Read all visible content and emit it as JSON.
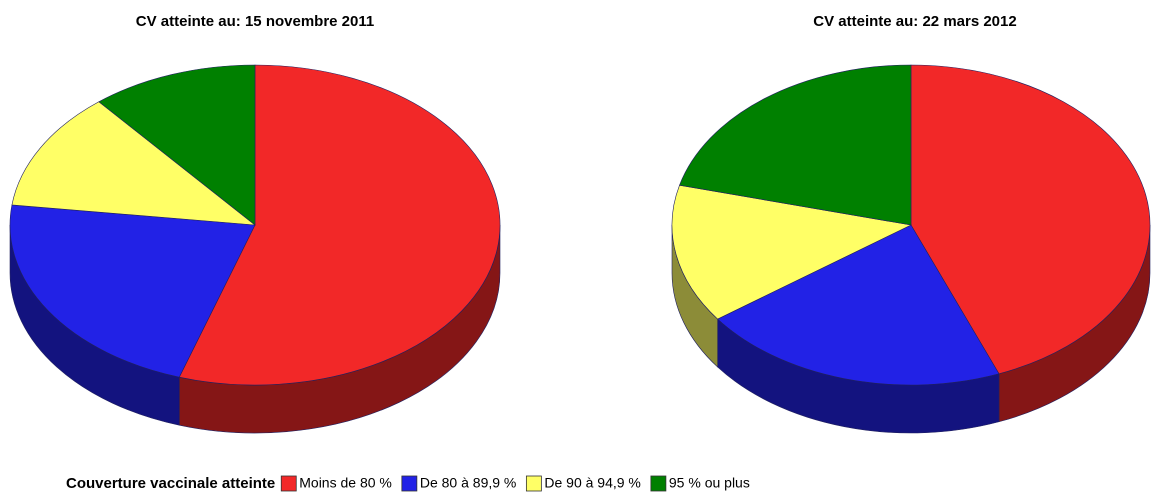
{
  "chart_data": [
    {
      "type": "pie",
      "title": "CV atteinte au: 15 novembre 2011",
      "categories": [
        "Moins de 80 %",
        "De 80 à 89,9 %",
        "De 90 à 94,9 %",
        "95 % ou plus"
      ],
      "values": [
        55,
        22,
        12,
        11
      ],
      "colors": [
        "#f22828",
        "#2222e6",
        "#ffff66",
        "#008000"
      ]
    },
    {
      "type": "pie",
      "title": "CV atteinte au: 22 mars 2012",
      "categories": [
        "Moins de 80 %",
        "De 80 à 89,9 %",
        "De 90 à 94,9 %",
        "95 % ou plus"
      ],
      "values": [
        44,
        21,
        14,
        21
      ],
      "colors": [
        "#f22828",
        "#2222e6",
        "#ffff66",
        "#008000"
      ]
    }
  ],
  "legend_title": "Couverture vaccinale atteinte"
}
